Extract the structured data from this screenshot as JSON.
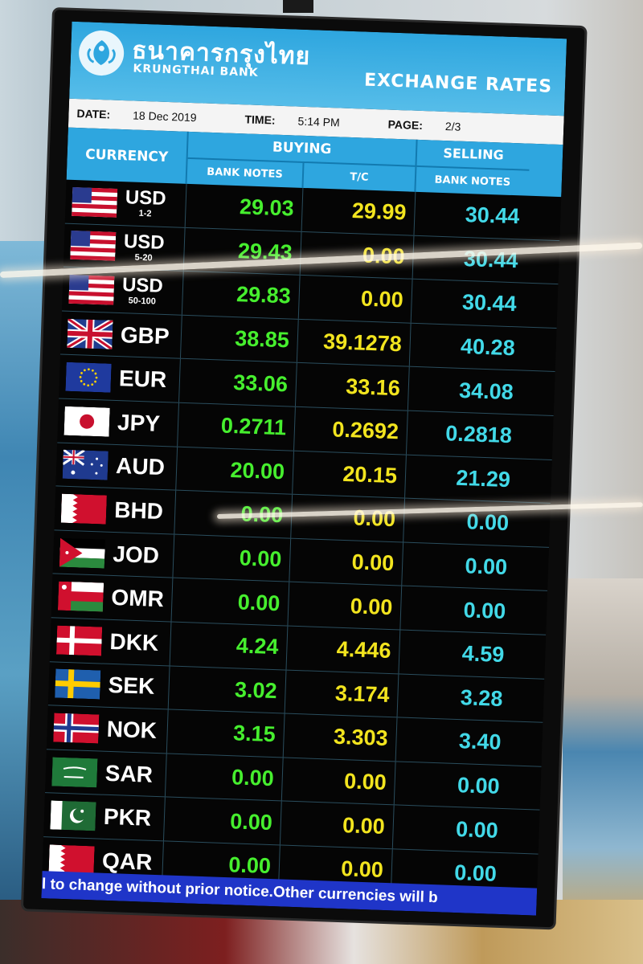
{
  "bank": {
    "name_thai": "ธนาคารกรุงไทย",
    "name_en": "KRUNGTHAI BANK",
    "logo_icon": "garuda-logo-icon"
  },
  "board": {
    "title": "EXCHANGE RATES"
  },
  "info": {
    "date_label": "DATE:",
    "date_value": "18 Dec 2019",
    "time_label": "TIME:",
    "time_value": "5:14 PM",
    "page_label": "PAGE:",
    "page_value": "2/3"
  },
  "headers": {
    "currency": "CURRENCY",
    "buying": "BUYING",
    "selling": "SELLING",
    "bank_notes_buy": "BANK NOTES",
    "tc": "T/C",
    "bank_notes_sell": "BANK NOTES"
  },
  "rows": [
    {
      "code": "USD",
      "sub": "1-2",
      "flag": "flag-us-icon",
      "bank_notes": "29.03",
      "tc": "29.99",
      "selling": "30.44"
    },
    {
      "code": "USD",
      "sub": "5-20",
      "flag": "flag-us-icon",
      "bank_notes": "29.43",
      "tc": "0.00",
      "selling": "30.44"
    },
    {
      "code": "USD",
      "sub": "50-100",
      "flag": "flag-us-icon",
      "bank_notes": "29.83",
      "tc": "0.00",
      "selling": "30.44"
    },
    {
      "code": "GBP",
      "sub": "",
      "flag": "flag-uk-icon",
      "bank_notes": "38.85",
      "tc": "39.1278",
      "selling": "40.28"
    },
    {
      "code": "EUR",
      "sub": "",
      "flag": "flag-eu-icon",
      "bank_notes": "33.06",
      "tc": "33.16",
      "selling": "34.08"
    },
    {
      "code": "JPY",
      "sub": "",
      "flag": "flag-jp-icon",
      "bank_notes": "0.2711",
      "tc": "0.2692",
      "selling": "0.2818"
    },
    {
      "code": "AUD",
      "sub": "",
      "flag": "flag-au-icon",
      "bank_notes": "20.00",
      "tc": "20.15",
      "selling": "21.29"
    },
    {
      "code": "BHD",
      "sub": "",
      "flag": "flag-bh-icon",
      "bank_notes": "0.00",
      "tc": "0.00",
      "selling": "0.00"
    },
    {
      "code": "JOD",
      "sub": "",
      "flag": "flag-jo-icon",
      "bank_notes": "0.00",
      "tc": "0.00",
      "selling": "0.00"
    },
    {
      "code": "OMR",
      "sub": "",
      "flag": "flag-om-icon",
      "bank_notes": "0.00",
      "tc": "0.00",
      "selling": "0.00"
    },
    {
      "code": "DKK",
      "sub": "",
      "flag": "flag-dk-icon",
      "bank_notes": "4.24",
      "tc": "4.446",
      "selling": "4.59"
    },
    {
      "code": "SEK",
      "sub": "",
      "flag": "flag-se-icon",
      "bank_notes": "3.02",
      "tc": "3.174",
      "selling": "3.28"
    },
    {
      "code": "NOK",
      "sub": "",
      "flag": "flag-no-icon",
      "bank_notes": "3.15",
      "tc": "3.303",
      "selling": "3.40"
    },
    {
      "code": "SAR",
      "sub": "",
      "flag": "flag-sa-icon",
      "bank_notes": "0.00",
      "tc": "0.00",
      "selling": "0.00"
    },
    {
      "code": "PKR",
      "sub": "",
      "flag": "flag-pk-icon",
      "bank_notes": "0.00",
      "tc": "0.00",
      "selling": "0.00"
    },
    {
      "code": "QAR",
      "sub": "",
      "flag": "flag-qa-icon",
      "bank_notes": "0.00",
      "tc": "0.00",
      "selling": "0.00"
    }
  ],
  "ticker": "l to change without prior notice.Other currencies will b",
  "colors": {
    "bank_notes": "#46ef2e",
    "tc": "#f2e41e",
    "selling": "#42d9e8",
    "header": "#2ea6df",
    "ticker": "#1f35c8"
  }
}
